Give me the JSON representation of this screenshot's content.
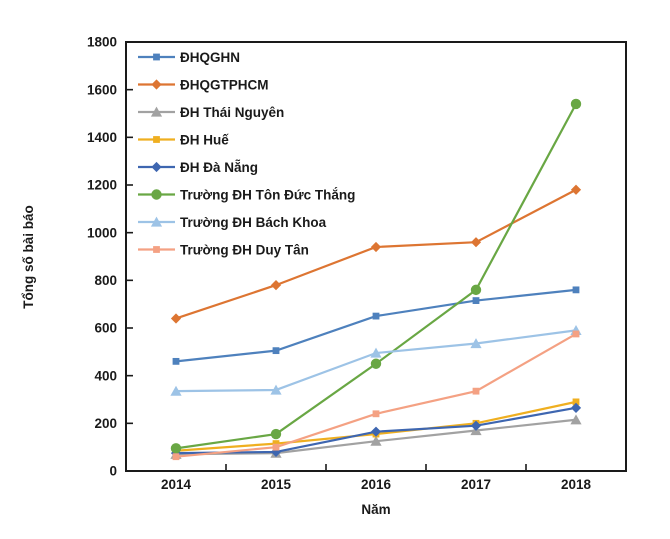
{
  "chart_data": {
    "type": "line",
    "x": [
      "2014",
      "2015",
      "2016",
      "2017",
      "2018"
    ],
    "xlabel": "Năm",
    "ylabel": "Tổng số bài báo",
    "ylim": [
      0,
      1800
    ],
    "ytick_step": 200,
    "grid": false,
    "legend_position": "inside-top-left",
    "frame_color": "#1a1a1a",
    "series": [
      {
        "name": "ĐHQGHN",
        "color": "#4E81BD",
        "marker": "square",
        "values": [
          460,
          505,
          650,
          715,
          760
        ]
      },
      {
        "name": "ĐHQGTPHCM",
        "color": "#DD7532",
        "marker": "diamond",
        "values": [
          640,
          780,
          940,
          960,
          1180
        ]
      },
      {
        "name": "ĐH Thái Nguyên",
        "color": "#A2A2A2",
        "marker": "triangle",
        "values": [
          70,
          75,
          125,
          170,
          215
        ]
      },
      {
        "name": "ĐH Huế",
        "color": "#EFAF20",
        "marker": "square",
        "values": [
          85,
          115,
          155,
          200,
          290
        ]
      },
      {
        "name": "ĐH Đà Nẵng",
        "color": "#3E66B0",
        "marker": "diamond",
        "values": [
          75,
          80,
          165,
          190,
          265
        ]
      },
      {
        "name": "Trường ĐH Tôn Đức Thắng",
        "color": "#69A744",
        "marker": "circle",
        "values": [
          95,
          155,
          450,
          760,
          1540
        ]
      },
      {
        "name": "Trường ĐH Bách Khoa",
        "color": "#9DC3E6",
        "marker": "triangle",
        "values": [
          335,
          340,
          495,
          535,
          590
        ]
      },
      {
        "name": "Trường ĐH Duy Tân",
        "color": "#F4A183",
        "marker": "square",
        "values": [
          60,
          100,
          240,
          335,
          575
        ]
      }
    ]
  },
  "axes": {
    "x_ticks": [
      "2014",
      "2015",
      "2016",
      "2017",
      "2018"
    ],
    "y_ticks": [
      "0",
      "200",
      "400",
      "600",
      "800",
      "1000",
      "1200",
      "1400",
      "1600",
      "1800"
    ]
  }
}
